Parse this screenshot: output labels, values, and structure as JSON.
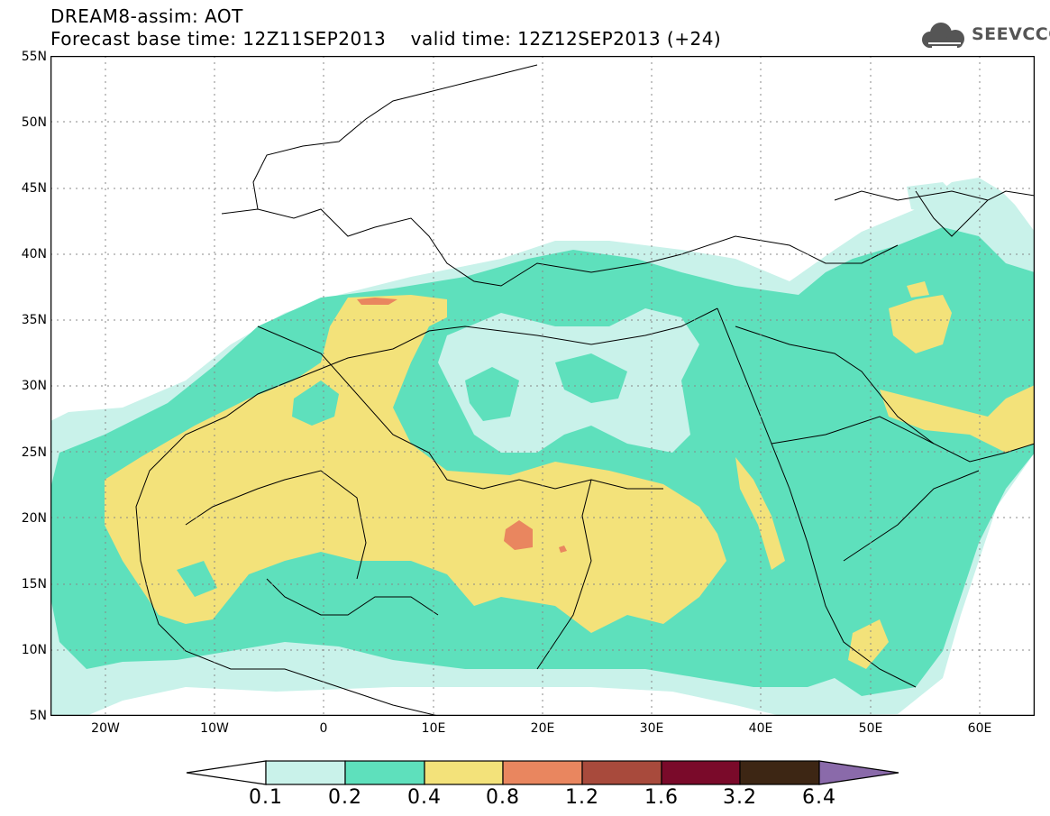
{
  "header": {
    "title_line1": "DREAM8-assim: AOT",
    "title_line2": "Forecast base time: 12Z11SEP2013    valid time: 12Z12SEP2013 (+24)"
  },
  "logo": {
    "text": "SEEVCCC",
    "icon": "cloud-icon"
  },
  "map": {
    "lat_labels": [
      "55N",
      "50N",
      "45N",
      "40N",
      "35N",
      "30N",
      "25N",
      "20N",
      "15N",
      "10N",
      "5N"
    ],
    "lon_labels": [
      "20W",
      "10W",
      "0",
      "10E",
      "20E",
      "30E",
      "40E",
      "50E",
      "60E"
    ],
    "lat_range": [
      5,
      55
    ],
    "lon_range": [
      -25,
      65
    ]
  },
  "colorbar": {
    "labels": [
      "0.1",
      "0.2",
      "0.4",
      "0.8",
      "1.2",
      "1.6",
      "3.2",
      "6.4"
    ],
    "colors": [
      "#c9f2ea",
      "#5ee0bc",
      "#f3e27a",
      "#e9865f",
      "#a84a3c",
      "#7a0a2a",
      "#3d2614",
      "#8a6aaa"
    ]
  },
  "colors": {
    "level1": "#c9f2ea",
    "level2": "#5ee0bc",
    "level3": "#f3e27a",
    "level4": "#e9865f"
  }
}
